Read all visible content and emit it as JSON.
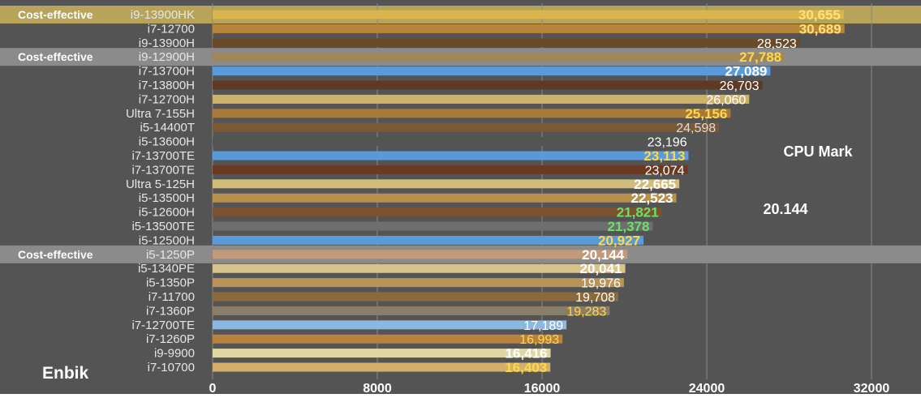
{
  "chart_data": {
    "type": "bar",
    "orientation": "horizontal",
    "title": "CPU Mark",
    "annotation_value": "20.144",
    "brand": "Enbik",
    "highlight_tag": "Cost-effective",
    "xlim": [
      0,
      32000
    ],
    "x_ticks": [
      "0",
      "8000",
      "16000",
      "24000",
      "32000"
    ],
    "grid": true,
    "colors": {
      "background": "#545454",
      "grid": "#8a8a8a",
      "highlight_gold": "#c9b25a",
      "highlight_gray": "#959595",
      "tick_text": "#ffffff",
      "label_text": "#e6e6e6"
    },
    "bars": [
      {
        "label": "i9-13900HK",
        "value": 30655,
        "value_label": "30,655",
        "bar_color": "#d8b64e",
        "value_color": "#ffe27a",
        "bold": true,
        "highlight": "gold",
        "tag": true
      },
      {
        "label": "i7-12700",
        "value": 30689,
        "value_label": "30,689",
        "bar_color": "#b8863a",
        "value_color": "#ffe27a",
        "bold": true,
        "highlight": "",
        "tag": false
      },
      {
        "label": "i9-13900H",
        "value": 28523,
        "value_label": "28,523",
        "bar_color": "#6b4a2a",
        "value_color": "#ffffff",
        "bold": false,
        "highlight": "",
        "tag": false
      },
      {
        "label": "i9-12900H",
        "value": 27788,
        "value_label": "27,788",
        "bar_color": "#a0875a",
        "value_color": "#ffd84a",
        "bold": true,
        "highlight": "gray",
        "tag": true
      },
      {
        "label": "i7-13700H",
        "value": 27089,
        "value_label": "27,089",
        "bar_color": "#5a9ad8",
        "value_color": "#ffffff",
        "bold": true,
        "highlight": "",
        "tag": false
      },
      {
        "label": "i7-13800H",
        "value": 26703,
        "value_label": "26,703",
        "bar_color": "#5e3a22",
        "value_color": "#ffffff",
        "bold": false,
        "highlight": "",
        "tag": false
      },
      {
        "label": "i7-12700H",
        "value": 26060,
        "value_label": "26,060",
        "bar_color": "#cdb36a",
        "value_color": "#ffffff",
        "bold": false,
        "highlight": "",
        "tag": false
      },
      {
        "label": "Ultra 7-155H",
        "value": 25156,
        "value_label": "25,156",
        "bar_color": "#a77a3c",
        "value_color": "#ffd84a",
        "bold": true,
        "highlight": "",
        "tag": false
      },
      {
        "label": "i5-14400T",
        "value": 24598,
        "value_label": "24,598",
        "bar_color": "#7a5a36",
        "value_color": "#dddddd",
        "bold": false,
        "highlight": "",
        "tag": false
      },
      {
        "label": "i5-13600H",
        "value": 23196,
        "value_label": "23,196",
        "bar_color": "#545454",
        "value_color": "#ffffff",
        "bold": false,
        "highlight": "",
        "tag": false
      },
      {
        "label": "i7-13700TE",
        "value": 23113,
        "value_label": "23,113",
        "bar_color": "#5a9ad8",
        "value_color": "#ffd84a",
        "bold": true,
        "highlight": "",
        "tag": false
      },
      {
        "label": "i7-13700TE",
        "value": 23074,
        "value_label": "23,074",
        "bar_color": "#6b3a22",
        "value_color": "#ffffff",
        "bold": false,
        "highlight": "",
        "tag": false
      },
      {
        "label": "Ultra 5-125H",
        "value": 22665,
        "value_label": "22,665",
        "bar_color": "#d2bc7a",
        "value_color": "#ffffff",
        "bold": true,
        "highlight": "",
        "tag": false
      },
      {
        "label": "i5-13500H",
        "value": 22523,
        "value_label": "22,523",
        "bar_color": "#b8904e",
        "value_color": "#ffffff",
        "bold": true,
        "highlight": "",
        "tag": false
      },
      {
        "label": "i5-12600H",
        "value": 21821,
        "value_label": "21,821",
        "bar_color": "#7a5230",
        "value_color": "#6be06b",
        "bold": true,
        "highlight": "",
        "tag": false
      },
      {
        "label": "i5-13500TE",
        "value": 21378,
        "value_label": "21,378",
        "bar_color": "#6e6e6e",
        "value_color": "#6be06b",
        "bold": true,
        "highlight": "",
        "tag": false
      },
      {
        "label": "i5-12500H",
        "value": 20927,
        "value_label": "20,927",
        "bar_color": "#5a9ad8",
        "value_color": "#ffd84a",
        "bold": true,
        "highlight": "",
        "tag": false
      },
      {
        "label": "i5-1250P",
        "value": 20144,
        "value_label": "20,144",
        "bar_color": "#c09a7a",
        "value_color": "#ffffff",
        "bold": true,
        "highlight": "gray",
        "tag": true
      },
      {
        "label": "i5-1340PE",
        "value": 20041,
        "value_label": "20,041",
        "bar_color": "#d8c48a",
        "value_color": "#ffffff",
        "bold": true,
        "highlight": "",
        "tag": false
      },
      {
        "label": "i5-1350P",
        "value": 19976,
        "value_label": "19,976",
        "bar_color": "#b89458",
        "value_color": "#ffffff",
        "bold": false,
        "highlight": "",
        "tag": false
      },
      {
        "label": "i7-11700",
        "value": 19708,
        "value_label": "19,708",
        "bar_color": "#8a6a3c",
        "value_color": "#ffffff",
        "bold": false,
        "highlight": "",
        "tag": false
      },
      {
        "label": "i7-1360P",
        "value": 19283,
        "value_label": "19,283",
        "bar_color": "#8a7e6a",
        "value_color": "#ffd84a",
        "bold": false,
        "highlight": "",
        "tag": false
      },
      {
        "label": "i7-12700TE",
        "value": 17189,
        "value_label": "17,189",
        "bar_color": "#8ab8e0",
        "value_color": "#ffffff",
        "bold": false,
        "highlight": "",
        "tag": false
      },
      {
        "label": "i7-1260P",
        "value": 16993,
        "value_label": "16,993",
        "bar_color": "#b8823e",
        "value_color": "#ffd84a",
        "bold": false,
        "highlight": "",
        "tag": false
      },
      {
        "label": "i9-9900",
        "value": 16416,
        "value_label": "16,416",
        "bar_color": "#e0d6a4",
        "value_color": "#ffffff",
        "bold": true,
        "highlight": "",
        "tag": false
      },
      {
        "label": "i7-10700",
        "value": 16403,
        "value_label": "16,403",
        "bar_color": "#d2b06a",
        "value_color": "#ffd84a",
        "bold": true,
        "highlight": "",
        "tag": false
      }
    ]
  }
}
